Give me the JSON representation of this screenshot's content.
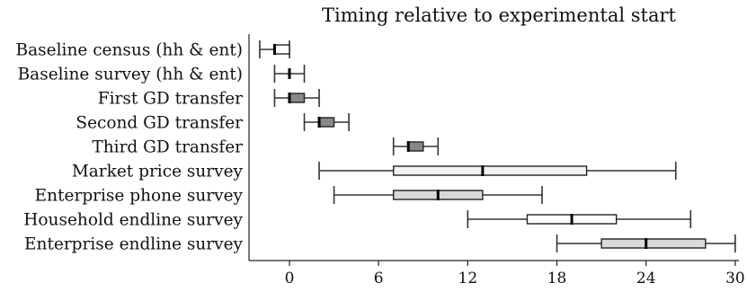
{
  "chart_data": {
    "type": "box",
    "title": "Timing relative to experimental start",
    "xlabel": "",
    "ylabel": "",
    "xlim": [
      -2.5,
      30
    ],
    "xticks": [
      0,
      6,
      12,
      18,
      24,
      30
    ],
    "grid": false,
    "legend": "none",
    "series": [
      {
        "category": "Baseline census (hh & ent)",
        "min": -2,
        "q1": -1,
        "median": -1,
        "q3": 0,
        "max": 0,
        "fill": "#ffffff"
      },
      {
        "category": "Baseline survey (hh & ent)",
        "min": -1,
        "q1": 0,
        "median": 0,
        "q3": 0,
        "max": 1,
        "fill": "#ffffff"
      },
      {
        "category": "First GD transfer",
        "min": -1,
        "q1": 0,
        "median": 0,
        "q3": 1,
        "max": 2,
        "fill": "#888888"
      },
      {
        "category": "Second GD transfer",
        "min": 1,
        "q1": 2,
        "median": 2,
        "q3": 3,
        "max": 4,
        "fill": "#888888"
      },
      {
        "category": "Third GD transfer",
        "min": 7,
        "q1": 8,
        "median": 8,
        "q3": 9,
        "max": 10,
        "fill": "#888888"
      },
      {
        "category": "Market price survey",
        "min": 2,
        "q1": 7,
        "median": 13,
        "q3": 20,
        "max": 26,
        "fill": "#f2f2f2"
      },
      {
        "category": "Enterprise phone survey",
        "min": 3,
        "q1": 7,
        "median": 10,
        "q3": 13,
        "max": 17,
        "fill": "#d9d9d9"
      },
      {
        "category": "Household endline survey",
        "min": 12,
        "q1": 16,
        "median": 19,
        "q3": 22,
        "max": 27,
        "fill": "#ffffff"
      },
      {
        "category": "Enterprise endline survey",
        "min": 18,
        "q1": 21,
        "median": 24,
        "q3": 28,
        "max": 30,
        "fill": "#d9d9d9"
      }
    ]
  }
}
